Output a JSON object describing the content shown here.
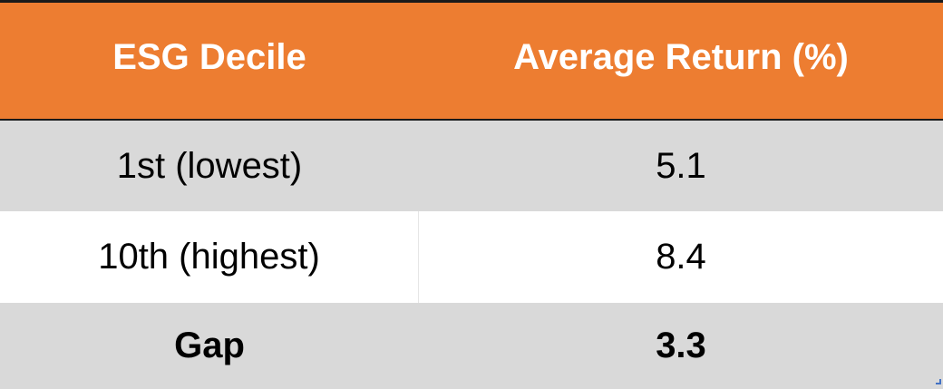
{
  "chart_data": {
    "type": "table",
    "columns": [
      "ESG Decile",
      "Average Return (%)"
    ],
    "rows": [
      {
        "decile": "1st (lowest)",
        "value": "5.1"
      },
      {
        "decile": "10th (highest)",
        "value": "8.4"
      },
      {
        "decile": "Gap",
        "value": "3.3"
      }
    ]
  },
  "colors": {
    "header_background": "#ED7D31",
    "header_text": "#FFFFFF",
    "shaded_row": "#D9D9D9",
    "plain_row": "#FFFFFF",
    "text": "#000000"
  }
}
